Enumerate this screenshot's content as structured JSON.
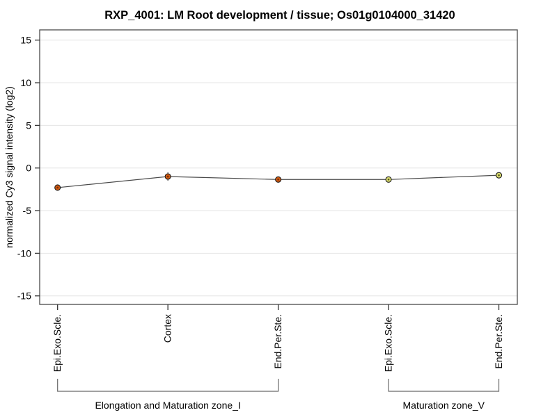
{
  "chart_data": {
    "type": "line",
    "title": "RXP_4001: LM Root development / tissue; Os01g0104000_31420",
    "xlabel": "",
    "ylabel": "normalized Cy3 signal intensity (log2)",
    "ylim": [
      -16,
      16.2
    ],
    "yticks": [
      15,
      10,
      5,
      0,
      -5,
      -10,
      -15
    ],
    "grid": true,
    "legend_position": "none",
    "categories": [
      "Epi.Exo.Scle.",
      "Cortex",
      "End.Per.Ste.",
      "Epi.Exo.Scle.",
      "End.Per.Ste."
    ],
    "values": [
      -2.3,
      -1.0,
      -1.35,
      -1.35,
      -0.85
    ],
    "error_bars": [
      0.25,
      0.5,
      0.3,
      0.3,
      0.2
    ],
    "point_fill_colors": [
      "#d05a12",
      "#d05a12",
      "#d05a12",
      "#dadc6f",
      "#dadc6f"
    ],
    "point_inner_colors": [
      "#7c2d00",
      "#7c2d00",
      "#7c2d00",
      "#55571f",
      "#55571f"
    ],
    "groups": [
      {
        "label": "Elongation and Maturation zone_I",
        "from": 0,
        "to": 2
      },
      {
        "label": "Maturation zone_V",
        "from": 3,
        "to": 4
      }
    ],
    "colors": {
      "grid": "#e4e4e4",
      "frame": "#4a4a4a",
      "tick": "#333333",
      "line": "#4a4a4a",
      "marker_stroke": "#1a1a1a",
      "bracket": "#696969",
      "background": "#ffffff"
    }
  }
}
